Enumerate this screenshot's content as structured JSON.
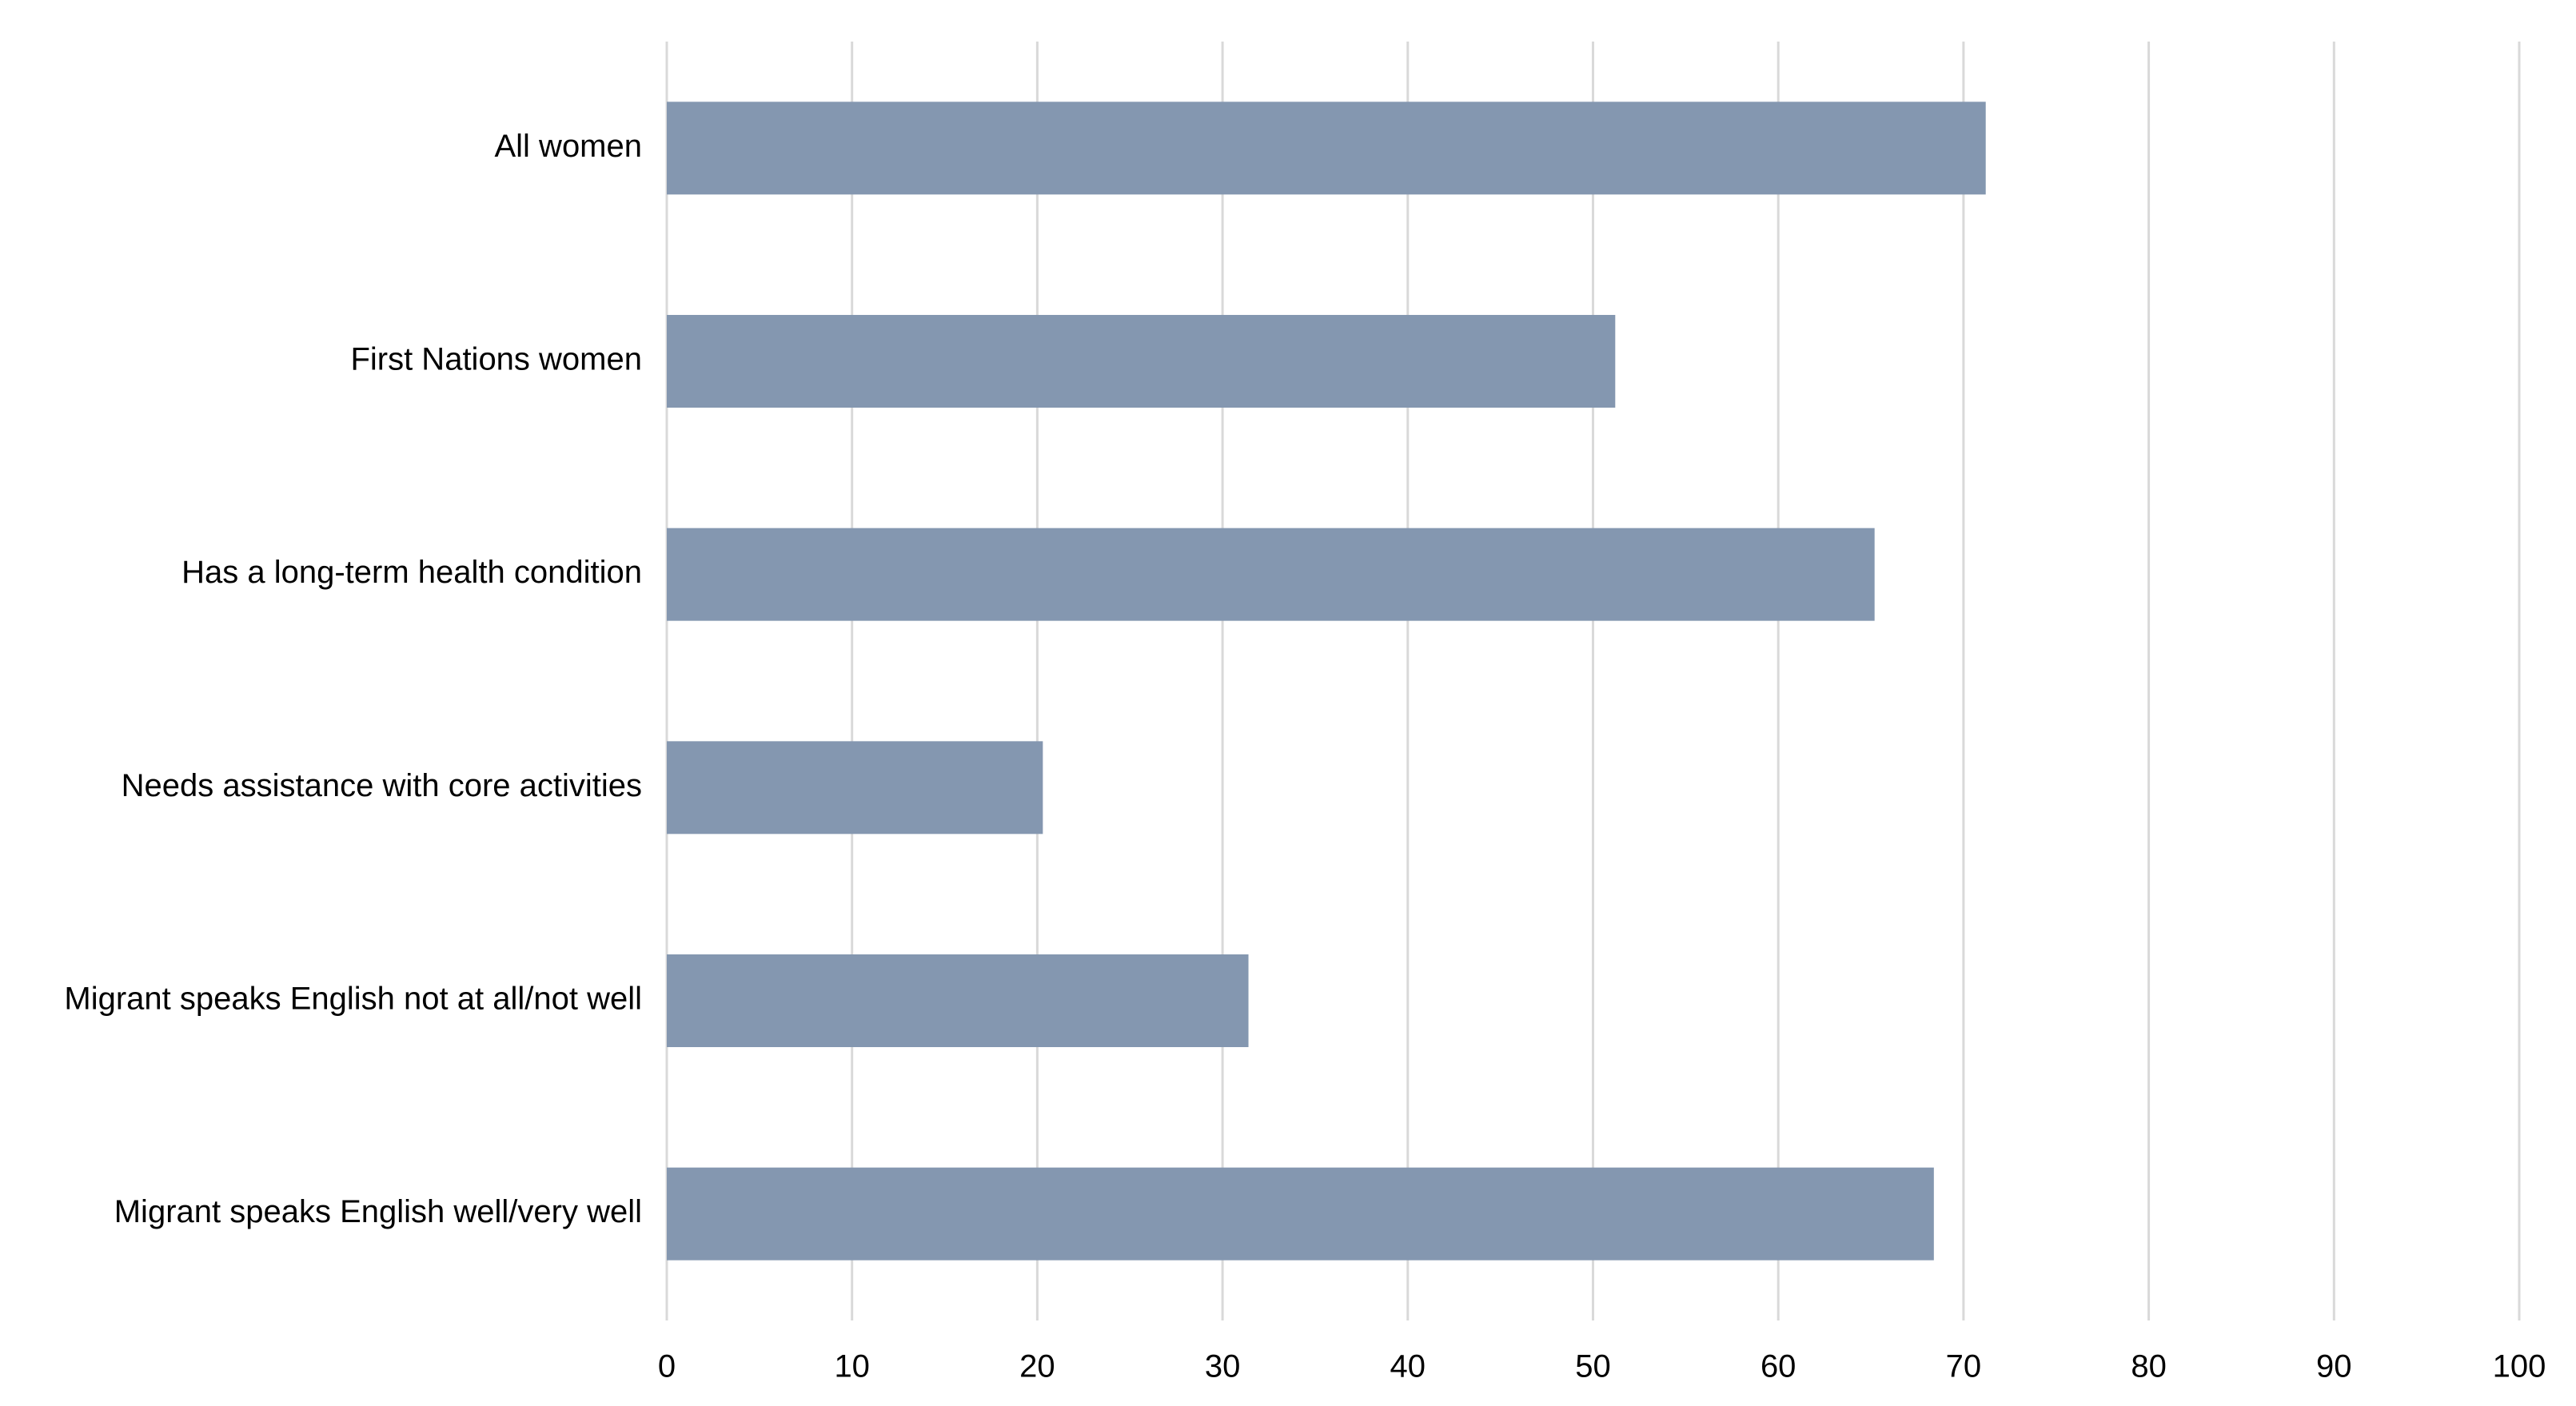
{
  "chart_data": {
    "type": "bar",
    "orientation": "horizontal",
    "categories": [
      "All women",
      "First Nations women",
      "Has a long-term health condition",
      "Needs assistance with core activities",
      "Migrant speaks English not at all/not well",
      "Migrant speaks English well/very well"
    ],
    "values": [
      71.2,
      51.2,
      65.2,
      20.3,
      31.4,
      68.4
    ],
    "color": "#8497b0",
    "xlim": [
      0,
      100
    ],
    "xticks": [
      0,
      10,
      20,
      30,
      40,
      50,
      60,
      70,
      80,
      90,
      100
    ],
    "grid": true
  }
}
